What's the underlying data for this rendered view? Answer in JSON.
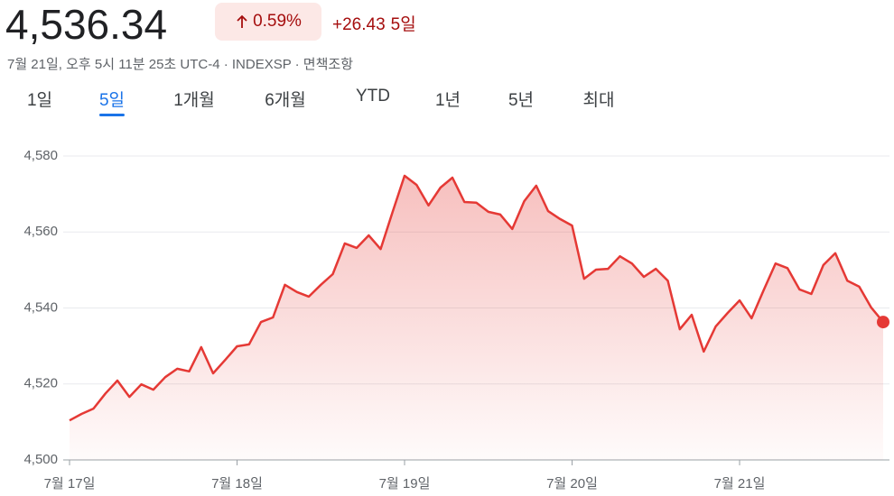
{
  "header": {
    "price": "4,536.34",
    "change_percent": "0.59%",
    "change": "+26.43",
    "period": "5일",
    "timestamp": "7월 21일, 오후 5시 11분 25초 UTC-4 · INDEXSP · 면책조항"
  },
  "tabs": {
    "labels": [
      "1일",
      "5일",
      "1개월",
      "6개월",
      "YTD",
      "1년",
      "5년",
      "최대"
    ],
    "selected_index": 1
  },
  "chart_data": {
    "type": "line",
    "color": "#e53935",
    "categories": [
      "7월 17일",
      null,
      null,
      null,
      null,
      null,
      null,
      null,
      null,
      null,
      null,
      null,
      null,
      null,
      "7월 18일",
      null,
      null,
      null,
      null,
      null,
      null,
      null,
      null,
      null,
      null,
      null,
      null,
      null,
      "7월 19일",
      null,
      null,
      null,
      null,
      null,
      null,
      null,
      null,
      null,
      null,
      null,
      null,
      null,
      "7월 20일",
      null,
      null,
      null,
      null,
      null,
      null,
      null,
      null,
      null,
      null,
      null,
      null,
      null,
      "7월 21일",
      null,
      null,
      null,
      null,
      null,
      null,
      null,
      null,
      null,
      null,
      null,
      null
    ],
    "values": [
      4510.4,
      4512.1,
      4513.5,
      4517.5,
      4520.9,
      4516.6,
      4519.9,
      4518.5,
      4521.8,
      4524.0,
      4523.3,
      4529.7,
      4522.8,
      4526.3,
      4529.9,
      4530.4,
      4536.3,
      4537.5,
      4546.1,
      4544.2,
      4543.0,
      4546.1,
      4548.9,
      4557.0,
      4555.8,
      4559.1,
      4555.5,
      4565.3,
      4574.8,
      4572.4,
      4567.0,
      4571.7,
      4574.3,
      4567.9,
      4567.7,
      4565.3,
      4564.6,
      4560.8,
      4568.1,
      4572.2,
      4565.5,
      4563.4,
      4561.7,
      4547.7,
      4550.1,
      4550.3,
      4553.6,
      4551.7,
      4548.2,
      4550.3,
      4547.2,
      4534.4,
      4538.2,
      4528.5,
      4535.1,
      4538.7,
      4542.0,
      4537.3,
      4544.6,
      4551.7,
      4550.5,
      4544.9,
      4543.7,
      4551.3,
      4554.4,
      4547.2,
      4545.6,
      4540.1,
      4536.3
    ],
    "ylim": [
      4500,
      4580
    ],
    "yticks": [
      {
        "value": 4500,
        "label": "4,500"
      },
      {
        "value": 4520,
        "label": "4,520"
      },
      {
        "value": 4540,
        "label": "4,540"
      },
      {
        "value": 4560,
        "label": "4,560"
      },
      {
        "value": 4580,
        "label": "4,580"
      }
    ],
    "grid": true
  }
}
